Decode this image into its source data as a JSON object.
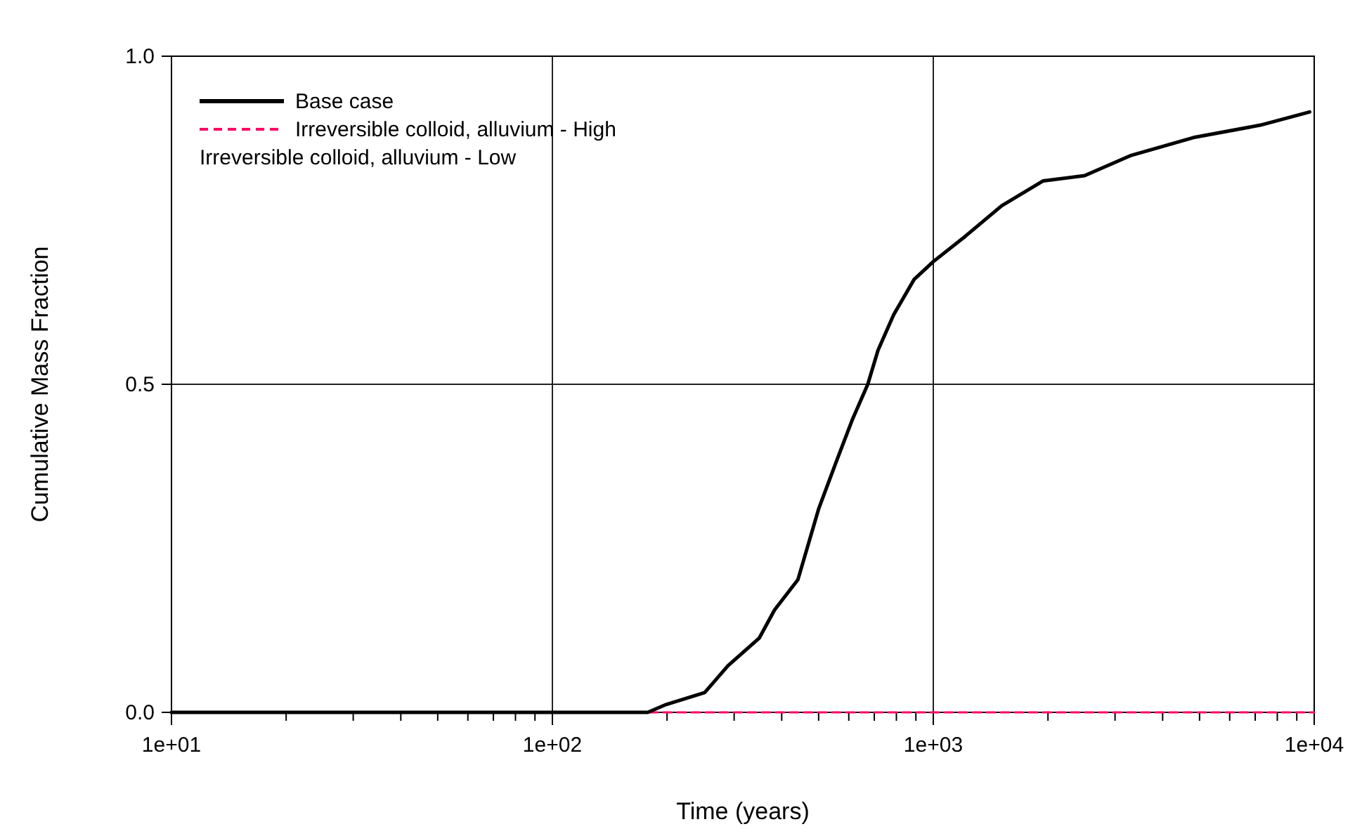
{
  "chart_data": {
    "type": "line",
    "xlabel": "Time (years)",
    "ylabel": "Cumulative Mass Fraction",
    "log": "x",
    "grid": true,
    "legend": "top left",
    "xlim": [
      10,
      10000
    ],
    "ylim": [
      0,
      1
    ],
    "xticks": [
      {
        "value": 10,
        "label": "1e+01"
      },
      {
        "value": 100,
        "label": "1e+02"
      },
      {
        "value": 1000,
        "label": "1e+03"
      },
      {
        "value": 10000,
        "label": "1e+04"
      }
    ],
    "yticks": [
      {
        "value": 0,
        "label": "0.0"
      },
      {
        "value": 0.5,
        "label": "0.5"
      },
      {
        "value": 1,
        "label": "1.0"
      }
    ],
    "annotations": [
      "Irreversible colloid, alluvium - Low"
    ],
    "series": [
      {
        "name": "Base case",
        "color": "#000000",
        "line_style": "solid",
        "x": [
          10,
          178,
          199,
          251,
          289,
          349,
          383,
          441,
          500,
          557,
          612,
          673,
          716,
          787,
          891,
          1000,
          1216,
          1512,
          1944,
          2496,
          3311,
          4819,
          7228,
          9727
        ],
        "values": [
          0,
          0,
          0.012,
          0.03,
          0.071,
          0.113,
          0.156,
          0.202,
          0.31,
          0.383,
          0.445,
          0.5,
          0.552,
          0.606,
          0.66,
          0.687,
          0.726,
          0.772,
          0.81,
          0.818,
          0.849,
          0.876,
          0.895,
          0.915
        ]
      },
      {
        "name": "Irreversible colloid, alluvium - High",
        "color": "#ff0066",
        "line_style": "dashed",
        "x": [
          10,
          10000
        ],
        "values": [
          0,
          0
        ]
      }
    ]
  }
}
